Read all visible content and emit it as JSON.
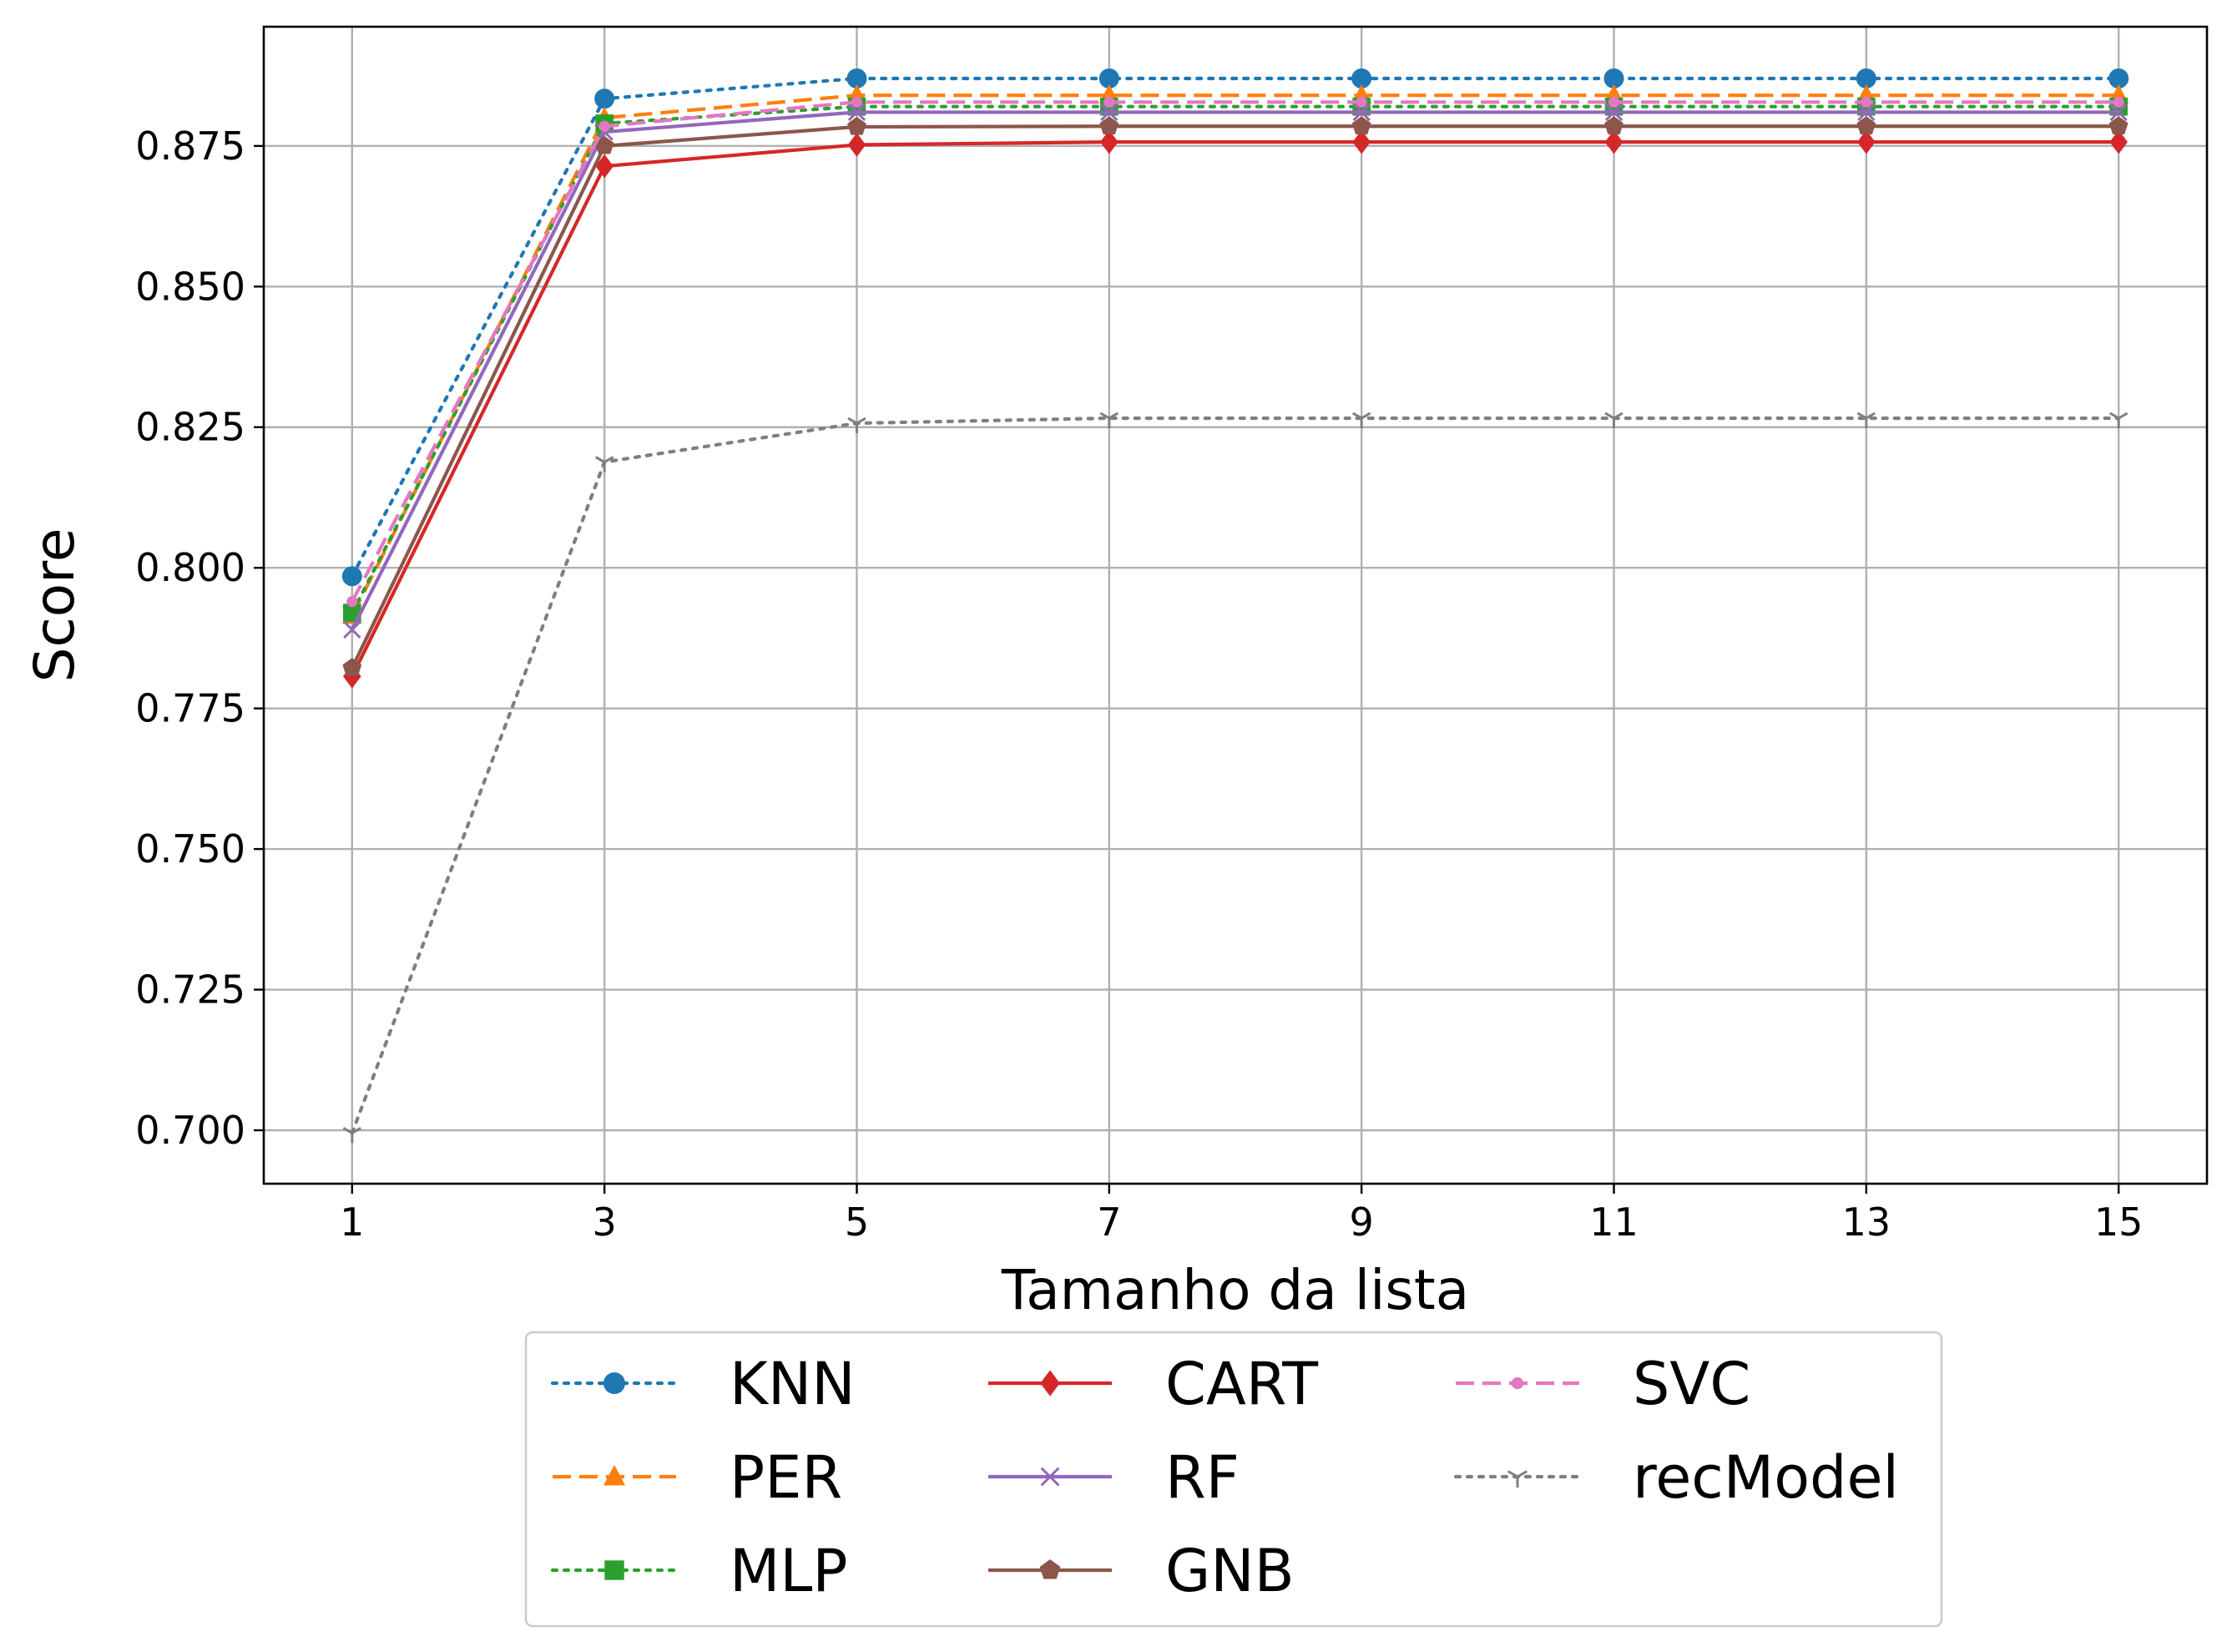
{
  "chart_data": {
    "type": "line",
    "xlabel": "Tamanho da lista",
    "ylabel": "Score",
    "x": [
      1,
      3,
      5,
      7,
      9,
      11,
      13,
      15
    ],
    "x_ticks": [
      "1",
      "3",
      "5",
      "7",
      "9",
      "11",
      "13",
      "15"
    ],
    "y_ticks": [
      "0.700",
      "0.725",
      "0.750",
      "0.775",
      "0.800",
      "0.825",
      "0.850",
      "0.875"
    ],
    "xlim": [
      0.3,
      15.7
    ],
    "ylim": [
      0.6905,
      0.8962
    ],
    "grid": true,
    "legend_position": "bottom-center",
    "series": [
      {
        "name": "KNN",
        "color": "#1f77b4",
        "linestyle": "dotted",
        "marker": "circle",
        "values": [
          0.7985,
          0.8834,
          0.887,
          0.887,
          0.887,
          0.887,
          0.887,
          0.887
        ]
      },
      {
        "name": "PER",
        "color": "#ff7f0e",
        "linestyle": "dashed",
        "marker": "triangle-up",
        "values": [
          0.7915,
          0.88,
          0.884,
          0.884,
          0.884,
          0.884,
          0.884,
          0.884
        ]
      },
      {
        "name": "MLP",
        "color": "#2ca02c",
        "linestyle": "dotted",
        "marker": "square",
        "values": [
          0.792,
          0.879,
          0.882,
          0.882,
          0.882,
          0.882,
          0.882,
          0.882
        ]
      },
      {
        "name": "CART",
        "color": "#d62728",
        "linestyle": "solid",
        "marker": "diamond",
        "values": [
          0.7807,
          0.8714,
          0.8752,
          0.8757,
          0.8757,
          0.8757,
          0.8757,
          0.8757
        ]
      },
      {
        "name": "RF",
        "color": "#9467bd",
        "linestyle": "solid",
        "marker": "x",
        "values": [
          0.789,
          0.8775,
          0.881,
          0.881,
          0.881,
          0.881,
          0.881,
          0.881
        ]
      },
      {
        "name": "GNB",
        "color": "#8c564b",
        "linestyle": "solid",
        "marker": "pentagon",
        "values": [
          0.7822,
          0.875,
          0.8784,
          0.8785,
          0.8785,
          0.8785,
          0.8785,
          0.8785
        ]
      },
      {
        "name": "SVC",
        "color": "#e377c2",
        "linestyle": "dashed",
        "marker": "point",
        "values": [
          0.794,
          0.8785,
          0.8828,
          0.8828,
          0.8828,
          0.8828,
          0.8828,
          0.8828
        ]
      },
      {
        "name": "recModel",
        "color": "#7f7f7f",
        "linestyle": "dotted",
        "marker": "tri-down",
        "values": [
          0.6995,
          0.8188,
          0.8257,
          0.8266,
          0.8266,
          0.8266,
          0.8266,
          0.8266
        ]
      }
    ]
  }
}
